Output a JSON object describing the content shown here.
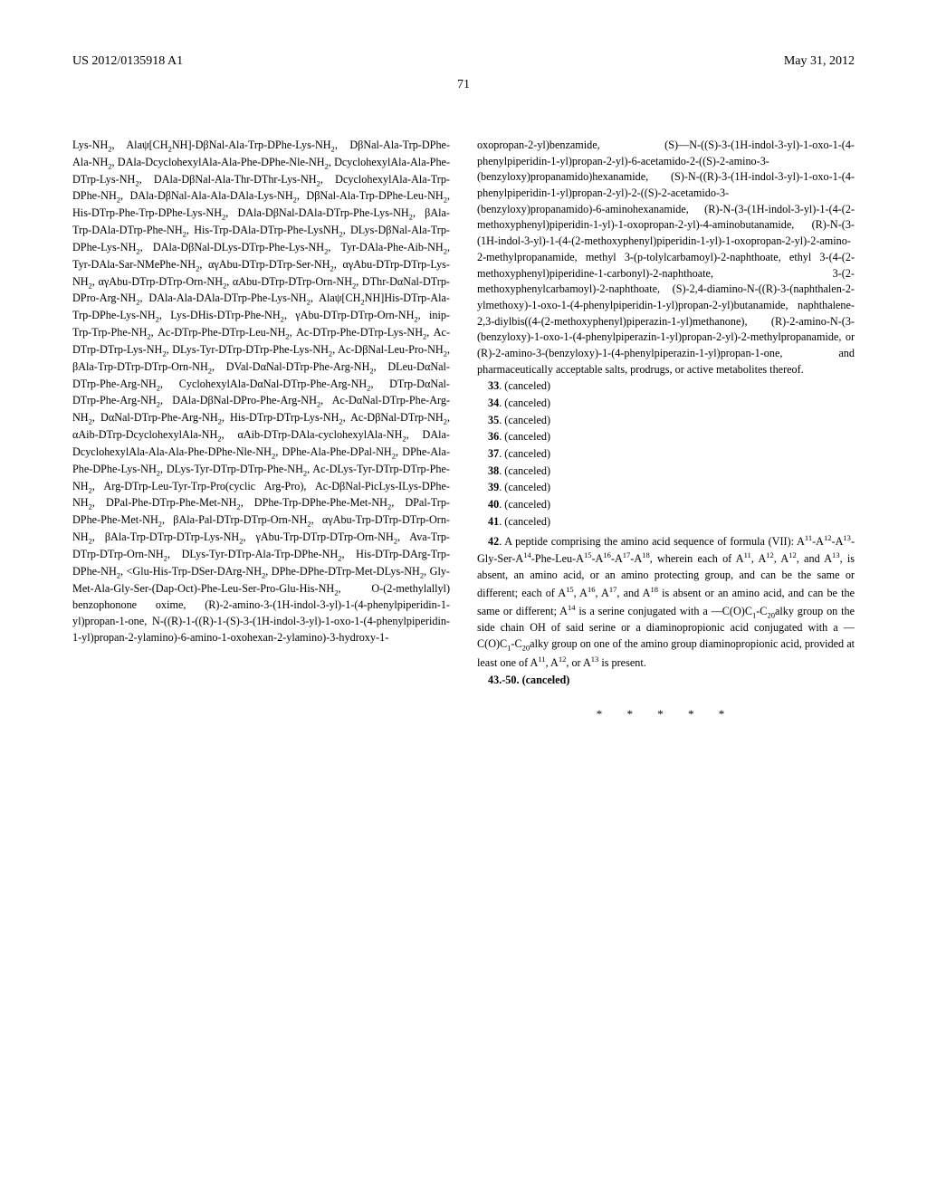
{
  "header": {
    "pub_number": "US 2012/0135918 A1",
    "pub_date": "May 31, 2012"
  },
  "page_number": "71",
  "left_column_html": "Lys-NH<sub>2</sub>, Alaψ[CH<sub>2</sub>NH]-DβNal-Ala-Trp-DPhe-Lys-NH<sub>2</sub>, DβNal-Ala-Trp-DPhe-Ala-NH<sub>2</sub>, DAla-DcyclohexylAla-Ala-Phe-DPhe-Nle-NH<sub>2</sub>, DcyclohexylAla-Ala-Phe-DTrp-Lys-NH<sub>2</sub>, DAla-DβNal-Ala-Thr-DThr-Lys-NH<sub>2</sub>, DcyclohexylAla-Ala-Trp-DPhe-NH<sub>2</sub>, DAla-DβNal-Ala-Ala-DAla-Lys-NH<sub>2</sub>, DβNal-Ala-Trp-DPhe-Leu-NH<sub>2</sub>, His-DTrp-Phe-Trp-DPhe-Lys-NH<sub>2</sub>, DAla-DβNal-DAla-DTrp-Phe-Lys-NH<sub>2</sub>, βAla-Trp-DAla-DTrp-Phe-NH<sub>2</sub>, His-Trp-DAla-DTrp-Phe-LysNH<sub>2</sub>, DLys-DβNal-Ala-Trp-DPhe-Lys-NH<sub>2</sub>, DAla-DβNal-DLys-DTrp-Phe-Lys-NH<sub>2</sub>, Tyr-DAla-Phe-Aib-NH<sub>2</sub>, Tyr-DAla-Sar-NMePhe-NH<sub>2</sub>, αγAbu-DTrp-DTrp-Ser-NH<sub>2</sub>, αγAbu-DTrp-DTrp-Lys-NH<sub>2</sub>, αγAbu-DTrp-DTrp-Orn-NH<sub>2</sub>, αAbu-DTrp-DTrp-Orn-NH<sub>2</sub>, DThr-DαNal-DTrp-DPro-Arg-NH<sub>2</sub>, DAla-Ala-DAla-DTrp-Phe-Lys-NH<sub>2</sub>, Alaψ[CH<sub>2</sub>NH]His-DTrp-Ala-Trp-DPhe-Lys-NH<sub>2</sub>, Lys-DHis-DTrp-Phe-NH<sub>2</sub>, γAbu-DTrp-DTrp-Orn-NH<sub>2</sub>, inip-Trp-Trp-Phe-NH<sub>2</sub>, Ac-DTrp-Phe-DTrp-Leu-NH<sub>2</sub>, Ac-DTrp-Phe-DTrp-Lys-NH<sub>2</sub>, Ac-DTrp-DTrp-Lys-NH<sub>2</sub>, DLys-Tyr-DTrp-DTrp-Phe-Lys-NH<sub>2</sub>, Ac-DβNal-Leu-Pro-NH<sub>2</sub>, βAla-Trp-DTrp-DTrp-Orn-NH<sub>2</sub>, DVal-DαNal-DTrp-Phe-Arg-NH<sub>2</sub>, DLeu-DαNal-DTrp-Phe-Arg-NH<sub>2</sub>, CyclohexylAla-DαNal-DTrp-Phe-Arg-NH<sub>2</sub>, DTrp-DαNal-DTrp-Phe-Arg-NH<sub>2</sub>, DAla-DβNal-DPro-Phe-Arg-NH<sub>2</sub>, Ac-DαNal-DTrp-Phe-Arg-NH<sub>2</sub>, DαNal-DTrp-Phe-Arg-NH<sub>2</sub>, His-DTrp-DTrp-Lys-NH<sub>2</sub>, Ac-DβNal-DTrp-NH<sub>2</sub>, αAib-DTrp-DcyclohexylAla-NH<sub>2</sub>, αAib-DTrp-DAla-cyclohexylAla-NH<sub>2</sub>, DAla-DcyclohexylAla-Ala-Ala-Phe-DPhe-Nle-NH<sub>2</sub>, DPhe-Ala-Phe-DPal-NH<sub>2</sub>, DPhe-Ala-Phe-DPhe-Lys-NH<sub>2</sub>, DLys-Tyr-DTrp-DTrp-Phe-NH<sub>2</sub>, Ac-DLys-Tyr-DTrp-DTrp-Phe-NH<sub>2</sub>, Arg-DTrp-Leu-Tyr-Trp-Pro(cyclic Arg-Pro), Ac-DβNal-PicLys-ILys-DPhe-NH<sub>2</sub>, DPal-Phe-DTrp-Phe-Met-NH<sub>2</sub>, DPhe-Trp-DPhe-Phe-Met-NH<sub>2</sub>, DPal-Trp-DPhe-Phe-Met-NH<sub>2</sub>, βAla-Pal-DTrp-DTrp-Orn-NH<sub>2</sub>, αγAbu-Trp-DTrp-DTrp-Orn-NH<sub>2</sub>, βAla-Trp-DTrp-DTrp-Lys-NH<sub>2</sub>, γAbu-Trp-DTrp-DTrp-Orn-NH<sub>2</sub>, Ava-Trp-DTrp-DTrp-Orn-NH<sub>2</sub>, DLys-Tyr-DTrp-Ala-Trp-DPhe-NH<sub>2</sub>, His-DTrp-DArg-Trp-DPhe-NH<sub>2</sub>, &lt;Glu-His-Trp-DSer-DArg-NH<sub>2</sub>, DPhe-DPhe-DTrp-Met-DLys-NH<sub>2</sub>, Gly-Met-Ala-Gly-Ser-(Dap-Oct)-Phe-Leu-Ser-Pro-Glu-His-NH<sub>2</sub>, O-(2-methylallyl) benzophonone oxime, (R)-2-amino-3-(1H-indol-3-yl)-1-(4-phenylpiperidin-1-yl)propan-1-one, N-((R)-1-((R)-1-(S)-3-(1H-indol-3-yl)-1-oxo-1-(4-phenylpiperidin-1-yl)propan-2-ylamino)-6-amino-1-oxohexan-2-ylamino)-3-hydroxy-1-",
  "right_column_paragraph_html": "oxopropan-2-yl)benzamide, (S)—N-((S)-3-(1H-indol-3-yl)-1-oxo-1-(4-phenylpiperidin-1-yl)propan-2-yl)-6-acetamido-2-((S)-2-amino-3-(benzyloxy)propanamido)hexanamide, (S)-N-((R)-3-(1H-indol-3-yl)-1-oxo-1-(4-phenylpiperidin-1-yl)propan-2-yl)-2-((S)-2-acetamido-3-(benzyloxy)propanamido)-6-aminohexanamide, (R)-N-(3-(1H-indol-3-yl)-1-(4-(2-methoxyphenyl)piperidin-1-yl)-1-oxopropan-2-yl)-4-aminobutanamide, (R)-N-(3-(1H-indol-3-yl)-1-(4-(2-methoxyphenyl)piperidin-1-yl)-1-oxopropan-2-yl)-2-amino-2-methylpropanamide, methyl 3-(p-tolylcarbamoyl)-2-naphthoate, ethyl 3-(4-(2-methoxyphenyl)piperidine-1-carbonyl)-2-naphthoate, 3-(2-methoxyphenylcarbamoyl)-2-naphthoate, (S)-2,4-diamino-N-((R)-3-(naphthalen-2-ylmethoxy)-1-oxo-1-(4-phenylpiperidin-1-yl)propan-2-yl)butanamide, naphthalene-2,3-diylbis((4-(2-methoxyphenyl)piperazin-1-yl)methanone), (R)-2-amino-N-(3-(benzyloxy)-1-oxo-1-(4-phenylpiperazin-1-yl)propan-2-yl)-2-methylpropanamide, or (R)-2-amino-3-(benzyloxy)-1-(4-phenylpiperazin-1-yl)propan-1-one, and pharmaceutically acceptable salts, prodrugs, or active metabolites thereof.",
  "canceled_claims": [
    "33",
    "34",
    "35",
    "36",
    "37",
    "38",
    "39",
    "40",
    "41"
  ],
  "canceled_label": ". (canceled)",
  "claim42": {
    "num": "42",
    "text_html": ". A peptide comprising the amino acid sequence of formula (VII): A<sup>11</sup>-A<sup>12</sup>-A<sup>13</sup>-Gly-Ser-A<sup>14</sup>-Phe-Leu-A<sup>15</sup>-A<sup>16</sup>-A<sup>17</sup>-A<sup>18</sup>, wherein each of A<sup>11</sup>, A<sup>12</sup>, A<sup>12</sup>, and A<sup>13</sup>, is absent, an amino acid, or an amino protecting group, and can be the same or different; each of A<sup>15</sup>, A<sup>16</sup>, A<sup>17</sup>, and A<sup>18</sup> is absent or an amino acid, and can be the same or different; A<sup>14</sup> is a serine conjugated with a —C(O)C<sub>1</sub>-C<sub>20</sub>alky group on the side chain OH of said serine or a diaminopropionic acid conjugated with a —C(O)C<sub>1</sub>-C<sub>20</sub>alky group on one of the amino group diaminopropionic acid, provided at least one of A<sup>11</sup>, A<sup>12</sup>, or A<sup>13</sup> is present."
  },
  "final_canceled": {
    "text": "43.-50. (canceled)"
  },
  "stars": "* * * * *"
}
